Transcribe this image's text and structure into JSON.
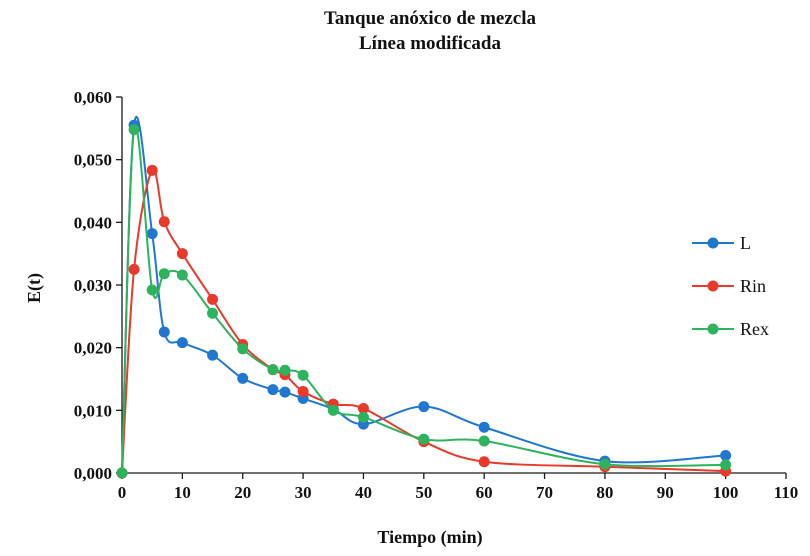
{
  "chart_data": {
    "type": "line",
    "title": [
      "Tanque anóxico de mezcla",
      "Línea modificada"
    ],
    "xlabel": "Tiempo (min)",
    "ylabel": "E(t)",
    "xlim": [
      0,
      110
    ],
    "ylim": [
      0,
      0.06
    ],
    "x_ticks": [
      "0",
      "10",
      "20",
      "30",
      "40",
      "50",
      "60",
      "70",
      "80",
      "90",
      "100",
      "110"
    ],
    "y_ticks": [
      "0,000",
      "0,010",
      "0,020",
      "0,030",
      "0,040",
      "0,050",
      "0,060"
    ],
    "grid": false,
    "legend_position": "right",
    "series": [
      {
        "name": "L",
        "color": "#1f77d0",
        "x": [
          0,
          2,
          5,
          7,
          10,
          15,
          20,
          25,
          27,
          30,
          35,
          40,
          50,
          60,
          80,
          100
        ],
        "y": [
          0.0,
          0.0555,
          0.0382,
          0.0225,
          0.0208,
          0.0188,
          0.0151,
          0.0133,
          0.0129,
          0.0119,
          0.0102,
          0.0078,
          0.0106,
          0.0073,
          0.0019,
          0.0028
        ]
      },
      {
        "name": "Rin",
        "color": "#e8392a",
        "x": [
          0,
          2,
          5,
          7,
          10,
          15,
          20,
          25,
          27,
          30,
          35,
          40,
          50,
          60,
          80,
          100
        ],
        "y": [
          0.0,
          0.0325,
          0.0483,
          0.0401,
          0.035,
          0.0277,
          0.0205,
          0.0165,
          0.0157,
          0.013,
          0.011,
          0.0103,
          0.005,
          0.0018,
          0.001,
          0.0003
        ]
      },
      {
        "name": "Rex",
        "color": "#2db35d",
        "x": [
          0,
          2,
          5,
          7,
          10,
          15,
          20,
          25,
          27,
          30,
          35,
          40,
          50,
          60,
          80,
          100
        ],
        "y": [
          0.0,
          0.0548,
          0.0292,
          0.0318,
          0.0316,
          0.0255,
          0.0198,
          0.0165,
          0.0164,
          0.0156,
          0.01,
          0.0089,
          0.0054,
          0.0051,
          0.0014,
          0.0013
        ]
      }
    ]
  }
}
